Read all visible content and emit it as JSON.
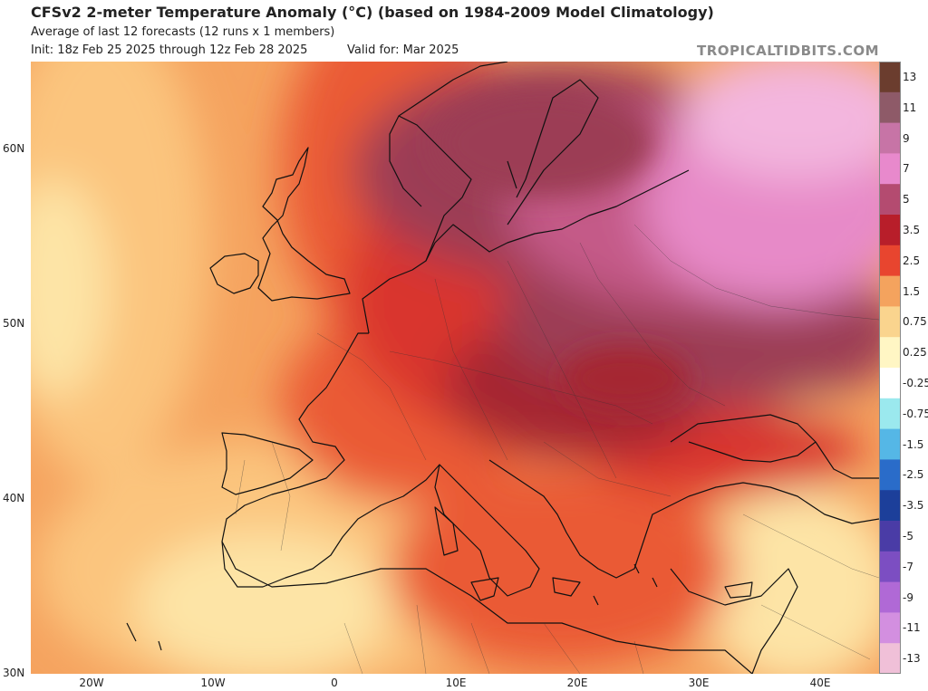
{
  "header": {
    "title": "CFSv2 2-meter Temperature Anomaly (°C) (based on 1984-2009 Model Climatology)",
    "subtitle": "Average of last 12 forecasts (12 runs x 1 members)",
    "init": "Init: 18z Feb 25 2025 through 12z Feb 28 2025",
    "valid": "Valid for: Mar 2025",
    "brand": "TROPICALTIDBITS.COM"
  },
  "axes": {
    "lat_labels": [
      "60N",
      "50N",
      "40N",
      "30N"
    ],
    "lat_values": [
      60,
      50,
      40,
      30
    ],
    "lon_labels": [
      "20W",
      "10W",
      "0",
      "10E",
      "20E",
      "30E",
      "40E"
    ],
    "lon_values": [
      -20,
      -10,
      0,
      10,
      20,
      30,
      40
    ],
    "lat_range": [
      30,
      65
    ],
    "lon_range": [
      -25,
      45
    ]
  },
  "colorbar": {
    "levels": [
      {
        "label": "13",
        "color": "#6b3d2e"
      },
      {
        "label": "11",
        "color": "#8e5a68"
      },
      {
        "label": "9",
        "color": "#c774a6"
      },
      {
        "label": "7",
        "color": "#e889cc"
      },
      {
        "label": "5",
        "color": "#b44b70"
      },
      {
        "label": "3.5",
        "color": "#b81e2a"
      },
      {
        "label": "2.5",
        "color": "#e8452f"
      },
      {
        "label": "1.5",
        "color": "#f4a35e"
      },
      {
        "label": "0.75",
        "color": "#fad48e"
      },
      {
        "label": "0.25",
        "color": "#fff6c4"
      },
      {
        "label": "-0.25",
        "color": "#ffffff"
      },
      {
        "label": "-0.75",
        "color": "#9be9ee"
      },
      {
        "label": "-1.5",
        "color": "#55b7e6"
      },
      {
        "label": "-2.5",
        "color": "#2a6cc9"
      },
      {
        "label": "-3.5",
        "color": "#1c3f9a"
      },
      {
        "label": "-5",
        "color": "#4a3ca6"
      },
      {
        "label": "-7",
        "color": "#7c4ec2"
      },
      {
        "label": "-9",
        "color": "#b069d6"
      },
      {
        "label": "-11",
        "color": "#d38fe0"
      },
      {
        "label": "-13",
        "color": "#f0c0d8"
      }
    ]
  },
  "map": {
    "region": "Europe, North Africa and Middle East",
    "colors": {
      "ocean_base": "#f5a35f",
      "light_orange": "#fbc57e",
      "pale_yellow": "#fde4a6",
      "red_orange": "#ea5a34",
      "red": "#d9362f",
      "dark_red": "#a52631",
      "maroon": "#9c3c55",
      "rose": "#c45a88",
      "pink": "#e78ac8",
      "light_pink": "#f3b6de",
      "coast": "#111111"
    }
  }
}
